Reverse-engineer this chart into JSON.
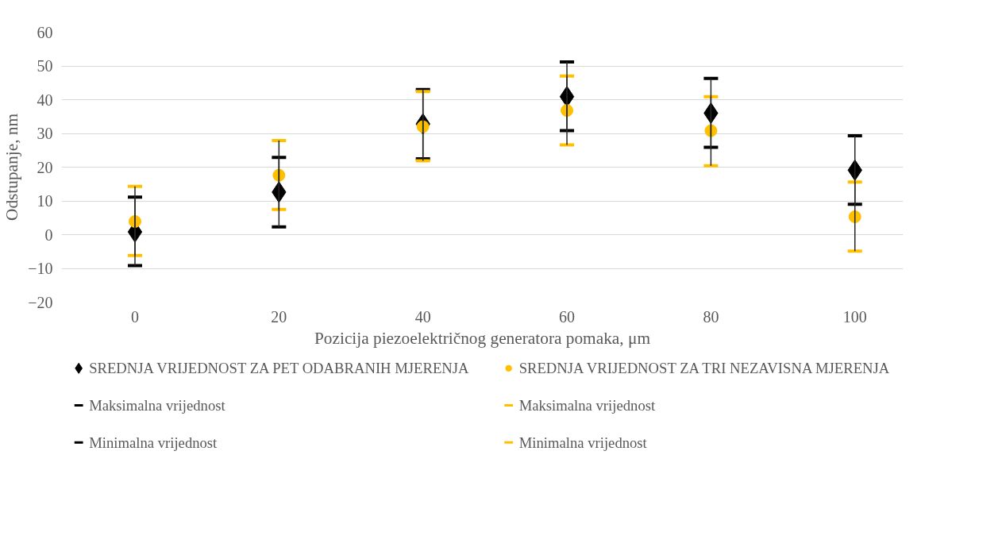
{
  "chart_data": {
    "type": "scatter",
    "xlabel": "Pozicija piezoelektričnog generatora pomaka, μm",
    "ylabel": "Odstupanje, nm",
    "x": [
      0,
      20,
      40,
      60,
      80,
      100
    ],
    "xlim": [
      -10.2,
      106.7
    ],
    "xticks": [
      0,
      20,
      40,
      60,
      80,
      100
    ],
    "ylim": [
      -20,
      60
    ],
    "yticks": [
      -20,
      -10,
      0,
      10,
      20,
      30,
      40,
      50,
      60
    ],
    "grid": "y",
    "legend": "bottom",
    "annotations": [
      "Maksimalna vrijednost",
      "Maksimalna vrijednost",
      "Minimalna vrijednost",
      "Minimalna vrijednost"
    ],
    "series": [
      {
        "name": "SREDNJA VRIJEDNOST ZA PET ODABRANIH MJERENJA",
        "color": "#000000",
        "marker": "diamond",
        "values": [
          0.8,
          12.6,
          32.8,
          40.9,
          36,
          19.1
        ],
        "errors": [
          [
            -9.2,
            11.1
          ],
          [
            2.3,
            22.9
          ],
          [
            22.5,
            43
          ],
          [
            30.8,
            51.2
          ],
          [
            25.9,
            46.3
          ],
          [
            9,
            29.3
          ]
        ]
      },
      {
        "name": "SREDNJA VRIJEDNOST ZA TRI NEZAVISNA MJERENJA",
        "color": "#ffc000",
        "marker": "circle",
        "values": [
          3.9,
          17.6,
          32,
          36.8,
          30.8,
          5.3
        ],
        "errors": [
          [
            -6.2,
            14.3
          ],
          [
            7.5,
            27.9
          ],
          [
            21.9,
            42.4
          ],
          [
            26.6,
            47
          ],
          [
            20.4,
            40.9
          ],
          [
            -4.9,
            15.6
          ]
        ]
      }
    ]
  }
}
